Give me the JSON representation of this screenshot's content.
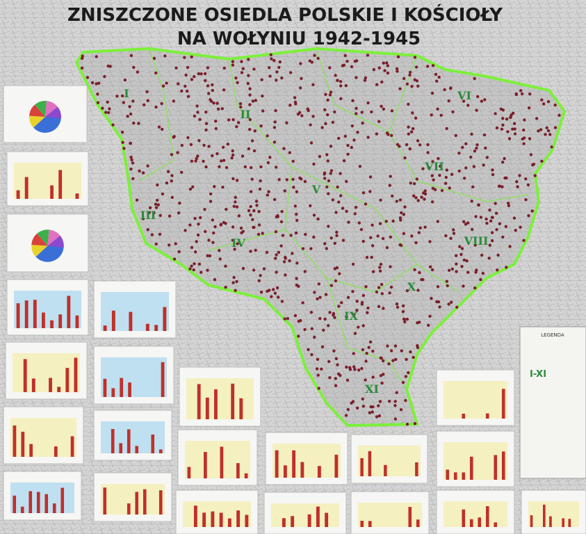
{
  "title": {
    "line1": "ZNISZCZONE OSIEDLA POLSKIE I KOŚCIOŁY",
    "line2": "NA WOŁYNIU 1942-1945"
  },
  "regions": [
    {
      "label": "I"
    },
    {
      "label": "II"
    },
    {
      "label": "III"
    },
    {
      "label": "IV"
    },
    {
      "label": "V"
    },
    {
      "label": "VI"
    },
    {
      "label": "VII"
    },
    {
      "label": "VIII"
    },
    {
      "label": "IX"
    },
    {
      "label": "X"
    },
    {
      "label": "XI"
    }
  ],
  "legend": {
    "title": "LEGENDA",
    "region_label": "I-XI"
  }
}
